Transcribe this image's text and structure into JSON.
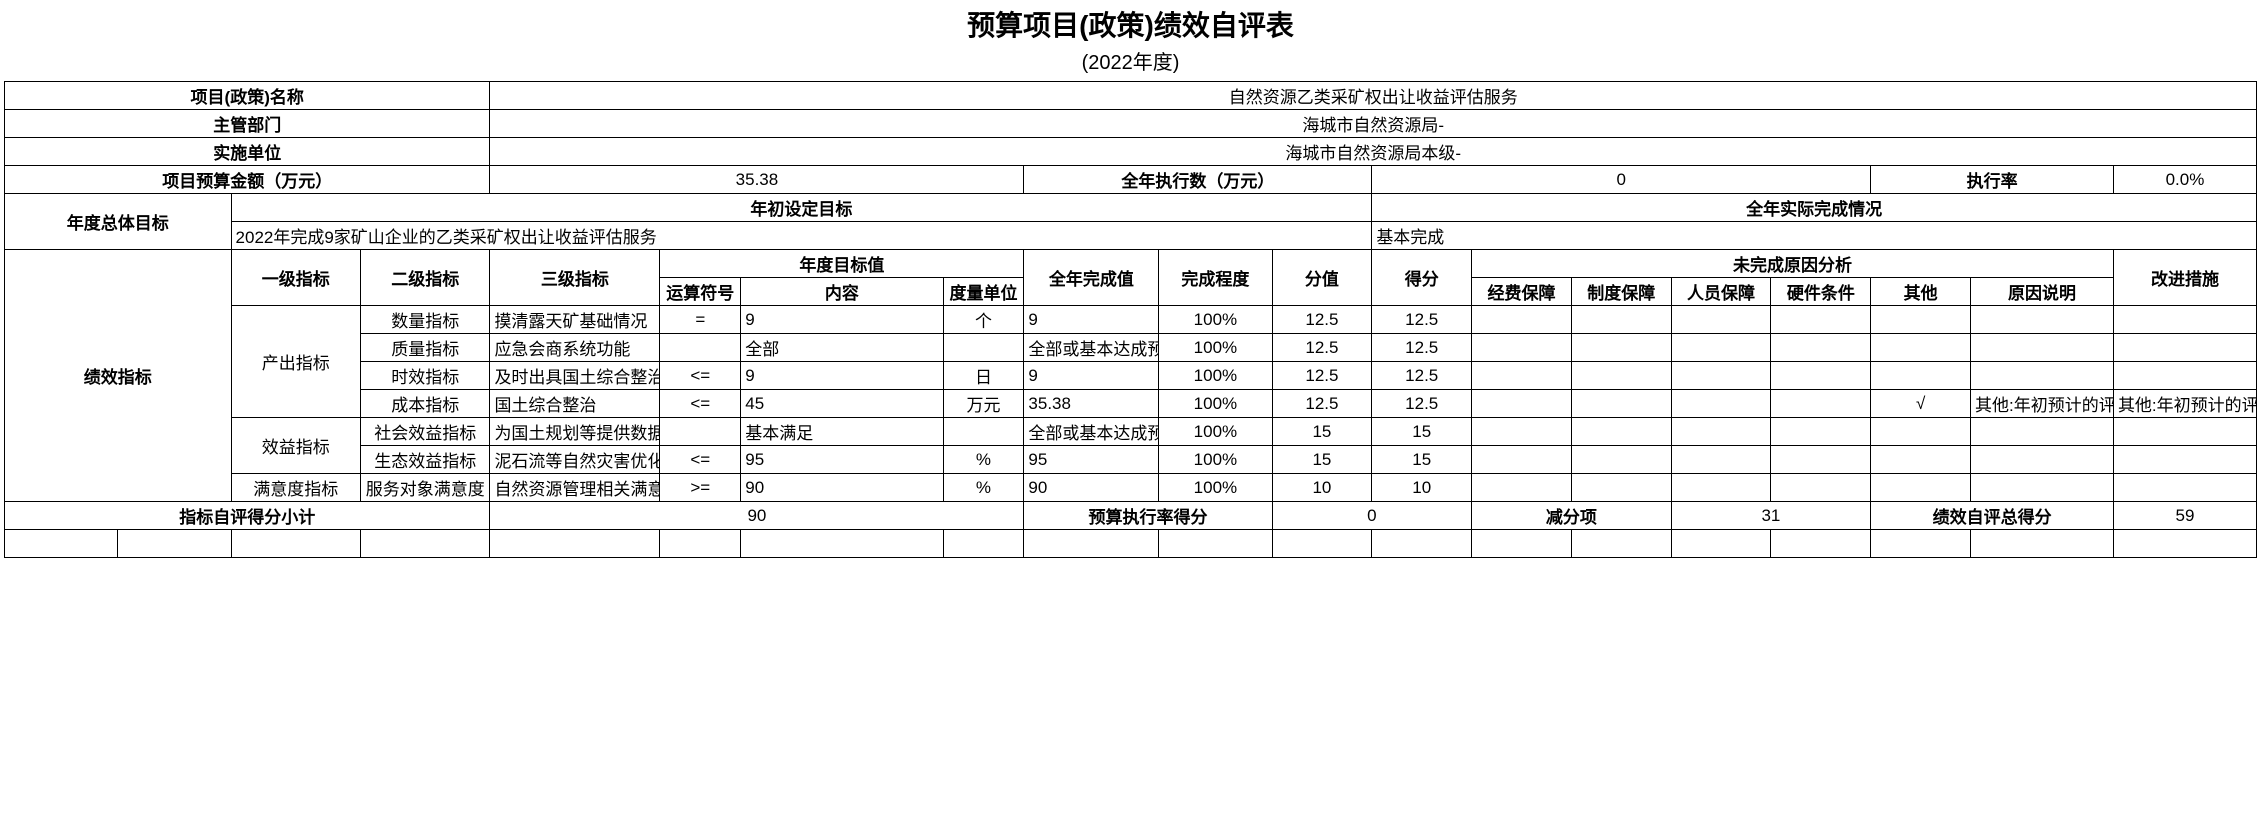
{
  "title": "预算项目(政策)绩效自评表",
  "subtitle": "(2022年度)",
  "header": {
    "project_name_label": "项目(政策)名称",
    "project_name_value": "自然资源乙类采矿权出让收益评估服务",
    "department_label": "主管部门",
    "department_value": "海城市自然资源局-",
    "implement_unit_label": "实施单位",
    "implement_unit_value": "海城市自然资源局本级-",
    "budget_amount_label": "项目预算金额（万元）",
    "budget_amount_value": "35.38",
    "annual_exec_label": "全年执行数（万元）",
    "annual_exec_value": "0",
    "exec_rate_label": "执行率",
    "exec_rate_value": "0.0%"
  },
  "goal": {
    "overall_label": "年度总体目标",
    "initial_goal_label": "年初设定目标",
    "completion_label": "全年实际完成情况",
    "initial_goal_value": "2022年完成9家矿山企业的乙类采矿权出让收益评估服务",
    "completion_value": "基本完成"
  },
  "indicator_headers": {
    "perf_label": "绩效指标",
    "level1": "一级指标",
    "level2": "二级指标",
    "level3": "三级指标",
    "annual_target": "年度目标值",
    "operator": "运算符号",
    "content": "内容",
    "unit": "度量单位",
    "annual_complete": "全年完成值",
    "completion_degree": "完成程度",
    "score_value": "分值",
    "score_obtained": "得分",
    "incomplete_analysis": "未完成原因分析",
    "funding": "经费保障",
    "system": "制度保障",
    "personnel": "人员保障",
    "hardware": "硬件条件",
    "other": "其他",
    "reason_desc": "原因说明",
    "improvement": "改进措施"
  },
  "indicators": [
    {
      "l1": "产出指标",
      "l1_rowspan": 4,
      "l2": "数量指标",
      "l3": "摸清露天矿基础情况",
      "op": "=",
      "content": "9",
      "unit": "个",
      "complete": "9",
      "degree": "100%",
      "score": "12.5",
      "obtained": "12.5",
      "c1": "",
      "c2": "",
      "c3": "",
      "c4": "",
      "c5": "",
      "reason": "",
      "improve": ""
    },
    {
      "l2": "质量指标",
      "l3": "应急会商系统功能",
      "op": "",
      "content": "全部",
      "unit": "",
      "complete": "全部或基本达成预",
      "degree": "100%",
      "score": "12.5",
      "obtained": "12.5",
      "c1": "",
      "c2": "",
      "c3": "",
      "c4": "",
      "c5": "",
      "reason": "",
      "improve": ""
    },
    {
      "l2": "时效指标",
      "l3": "及时出具国土综合整治工作",
      "op": "<=",
      "content": "9",
      "unit": "日",
      "complete": "9",
      "degree": "100%",
      "score": "12.5",
      "obtained": "12.5",
      "c1": "",
      "c2": "",
      "c3": "",
      "c4": "",
      "c5": "",
      "reason": "",
      "improve": ""
    },
    {
      "l2": "成本指标",
      "l3": "国土综合整治",
      "op": "<=",
      "content": "45",
      "unit": "万元",
      "complete": "35.38",
      "degree": "100%",
      "score": "12.5",
      "obtained": "12.5",
      "c1": "",
      "c2": "",
      "c3": "",
      "c4": "",
      "c5": "√",
      "reason": "其他:年初预计的评估",
      "improve": "其他:年初预计的评估"
    },
    {
      "l1": "效益指标",
      "l1_rowspan": 2,
      "l2": "社会效益指标",
      "l3": "为国土规划等提供数据支撑",
      "op": "",
      "content": "基本满足",
      "unit": "",
      "complete": "全部或基本达成预",
      "degree": "100%",
      "score": "15",
      "obtained": "15",
      "c1": "",
      "c2": "",
      "c3": "",
      "c4": "",
      "c5": "",
      "reason": "",
      "improve": ""
    },
    {
      "l2": "生态效益指标",
      "l3": "泥石流等自然灾害优化率",
      "op": "<=",
      "content": "95",
      "unit": "%",
      "complete": "95",
      "degree": "100%",
      "score": "15",
      "obtained": "15",
      "c1": "",
      "c2": "",
      "c3": "",
      "c4": "",
      "c5": "",
      "reason": "",
      "improve": ""
    },
    {
      "l1": "满意度指标",
      "l1_rowspan": 1,
      "l2": "服务对象满意度",
      "l3": "自然资源管理相关满意度",
      "op": ">=",
      "content": "90",
      "unit": "%",
      "complete": "90",
      "degree": "100%",
      "score": "10",
      "obtained": "10",
      "c1": "",
      "c2": "",
      "c3": "",
      "c4": "",
      "c5": "",
      "reason": "",
      "improve": ""
    }
  ],
  "footer": {
    "subtotal_label": "指标自评得分小计",
    "subtotal_value": "90",
    "exec_rate_score_label": "预算执行率得分",
    "exec_rate_score_value": "0",
    "deduction_label": "减分项",
    "deduction_value": "31",
    "total_score_label": "绩效自评总得分",
    "total_score_value": "59"
  },
  "style": {
    "widths_pct": [
      4.2,
      4.2,
      4.8,
      4.8,
      6.3,
      3.0,
      7.5,
      3.0,
      5.0,
      4.2,
      3.7,
      3.7,
      3.7,
      3.7,
      3.7,
      3.7,
      3.7,
      5.3,
      5.3
    ]
  }
}
